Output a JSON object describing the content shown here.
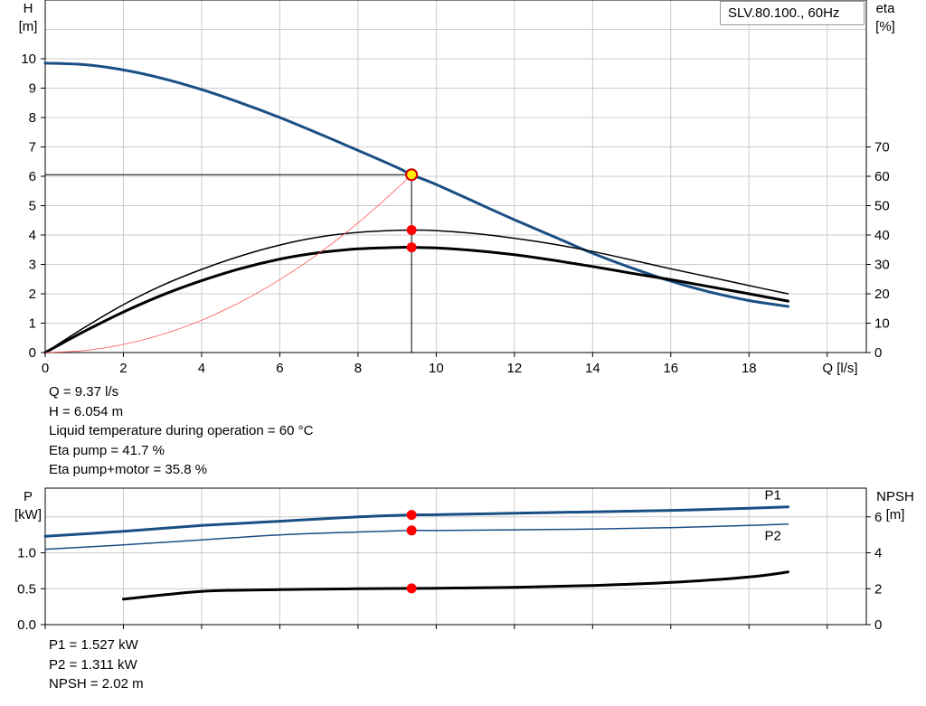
{
  "chart_data": [
    {
      "type": "line",
      "title": "",
      "legend_box": "SLV.80.100., 60Hz",
      "x_axis": {
        "label": "Q [l/s]",
        "min": 0,
        "max": 21,
        "ticks": [
          0,
          2,
          4,
          6,
          8,
          10,
          12,
          14,
          16,
          18
        ]
      },
      "y_axis_left": {
        "label_line1": "H",
        "label_line2": "[m]",
        "min": 0,
        "max": 12,
        "ticks": [
          0,
          1,
          2,
          3,
          4,
          5,
          6,
          7,
          8,
          9,
          10
        ]
      },
      "y_axis_right": {
        "label_line1": "eta",
        "label_line2": "[%]",
        "min": 0,
        "max": 120,
        "ticks": [
          0,
          10,
          20,
          30,
          40,
          50,
          60,
          70
        ]
      },
      "grid": true,
      "series": [
        {
          "axis": "left",
          "color": "#1a4f84",
          "x": [
            0,
            1,
            2,
            3,
            4,
            5,
            6,
            7,
            8,
            9,
            9.37,
            10,
            11,
            12,
            13,
            14,
            15,
            16,
            17,
            18,
            19
          ],
          "y": [
            9.85,
            9.8,
            9.62,
            9.33,
            8.95,
            8.5,
            8.0,
            7.45,
            6.88,
            6.3,
            6.054,
            5.72,
            5.12,
            4.52,
            3.95,
            3.38,
            2.88,
            2.43,
            2.06,
            1.77,
            1.57
          ]
        },
        {
          "axis": "right",
          "color": "#000000",
          "x": [
            0,
            1,
            2,
            3,
            4,
            5,
            6,
            7,
            8,
            9,
            9.37,
            10,
            11,
            12,
            13,
            14,
            15,
            16,
            17,
            18,
            19
          ],
          "y": [
            0,
            8.5,
            16.3,
            22.9,
            28.3,
            32.9,
            36.6,
            39.3,
            40.9,
            41.6,
            41.7,
            41.5,
            40.5,
            38.9,
            36.9,
            34.4,
            31.5,
            28.5,
            25.7,
            22.8,
            20.0
          ]
        },
        {
          "axis": "right",
          "color": "#000000",
          "x": [
            0,
            1,
            2,
            3,
            4,
            5,
            6,
            7,
            8,
            9,
            9.37,
            10,
            11,
            12,
            13,
            14,
            15,
            16,
            17,
            18,
            19
          ],
          "y": [
            0,
            7.2,
            13.8,
            19.6,
            24.5,
            28.6,
            31.8,
            34.0,
            35.3,
            35.8,
            35.8,
            35.6,
            34.7,
            33.3,
            31.4,
            29.3,
            27.0,
            24.8,
            22.4,
            20.0,
            17.5
          ]
        },
        {
          "axis": "left",
          "color": "#ff5a5a",
          "x": [
            0,
            1,
            2,
            3,
            4,
            5,
            6,
            7,
            8,
            9,
            9.37
          ],
          "y": [
            0,
            0.069,
            0.276,
            0.62,
            1.103,
            1.724,
            2.482,
            3.378,
            4.412,
            5.584,
            6.054
          ]
        }
      ],
      "operating_point": {
        "x": 9.37,
        "h": 6.054,
        "eta_pump": 41.7,
        "eta_pump_motor": 35.8
      }
    },
    {
      "type": "line",
      "title": "",
      "x_axis": {
        "min": 0,
        "max": 21,
        "ticks": [
          0,
          2,
          4,
          6,
          8,
          10,
          12,
          14,
          16,
          18
        ]
      },
      "y_axis_left": {
        "label_line1": "P",
        "label_line2": "[kW]",
        "min": 0,
        "max": 1.9,
        "ticks": [
          0.0,
          0.5,
          1.0
        ],
        "tick_labels": [
          "0.0",
          "0.5",
          "1.0"
        ]
      },
      "y_axis_right": {
        "label_line1": "NPSH",
        "label_line2": "[m]",
        "min": 0,
        "max": 7.6,
        "ticks": [
          0,
          2,
          4,
          6
        ]
      },
      "grid": true,
      "series": [
        {
          "name": "P1",
          "axis": "left",
          "color": "#1a4f84",
          "x": [
            0,
            2,
            4,
            6,
            8,
            9.37,
            10,
            12,
            14,
            16,
            18,
            19
          ],
          "y": [
            1.23,
            1.3,
            1.38,
            1.44,
            1.5,
            1.527,
            1.53,
            1.55,
            1.57,
            1.59,
            1.62,
            1.64
          ]
        },
        {
          "name": "P2",
          "axis": "left",
          "color": "#1a4f84",
          "x": [
            0,
            2,
            4,
            6,
            8,
            9.37,
            10,
            12,
            14,
            16,
            18,
            19
          ],
          "y": [
            1.05,
            1.11,
            1.18,
            1.25,
            1.29,
            1.311,
            1.31,
            1.32,
            1.33,
            1.35,
            1.38,
            1.4
          ]
        },
        {
          "name": "",
          "axis": "right",
          "color": "#000000",
          "x": [
            2,
            4,
            6,
            8,
            9.37,
            10,
            12,
            14,
            16,
            18,
            19
          ],
          "y": [
            1.42,
            1.85,
            1.95,
            2.0,
            2.02,
            2.03,
            2.08,
            2.18,
            2.35,
            2.65,
            2.93
          ]
        }
      ],
      "operating_point": {
        "x": 9.37,
        "p1": 1.527,
        "p2": 1.311,
        "npsh": 2.02
      }
    }
  ],
  "readouts_top": {
    "q": "Q = 9.37 l/s",
    "h": "H = 6.054 m",
    "temp": "Liquid temperature during operation = 60 °C",
    "eta_pump": "Eta pump = 41.7 %",
    "eta_pump_motor": "Eta pump+motor = 35.8 %"
  },
  "readouts_bottom": {
    "p1": "P1 = 1.527 kW",
    "p2": "P2 = 1.311 kW",
    "npsh": "NPSH = 2.02 m"
  }
}
